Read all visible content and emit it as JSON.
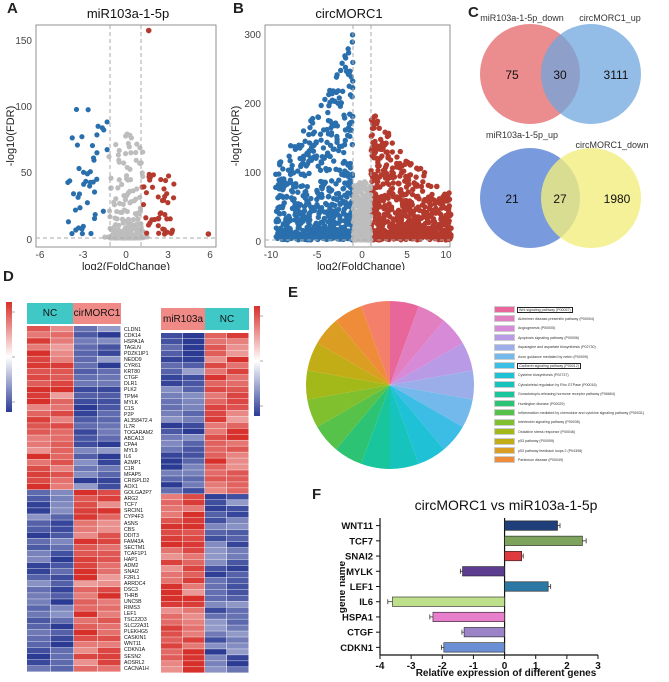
{
  "panels": {
    "A": {
      "label": "A",
      "title": "miR103a-1-5p",
      "xlabel": "log2(FoldChange)",
      "ylabel": "-log10(FDR)",
      "xticks": [
        "-6",
        "-3",
        "0",
        "3",
        "6"
      ],
      "yticks": [
        "0",
        "50",
        "100",
        "150"
      ]
    },
    "B": {
      "label": "B",
      "title": "circMORC1",
      "xlabel": "log2(FoldChange)",
      "ylabel": "-log10(FDR)",
      "xticks": [
        "-10",
        "-5",
        "0",
        "5",
        "10"
      ],
      "yticks": [
        "0",
        "100",
        "200",
        "300"
      ]
    },
    "C": {
      "label": "C",
      "venn1": {
        "left_title": "miR103a-1-5p_down",
        "right_title": "circMORC1_up",
        "left": "75",
        "mid": "30",
        "right": "3111"
      },
      "venn2": {
        "left_title": "miR103a-1-5p_up",
        "right_title": "circMORC1_down",
        "left": "21",
        "mid": "27",
        "right": "1980"
      }
    },
    "D": {
      "label": "D",
      "left_groups": [
        "NC",
        "cirMORC1"
      ],
      "right_groups": [
        "miR103a",
        "NC"
      ],
      "genes": [
        "CLDN1",
        "CDK14",
        "HSPA1A",
        "TAGLN",
        "PDZK1IP1",
        "NEDD9",
        "CYR61",
        "KRT80",
        "CTGF",
        "DLR1",
        "PLK2",
        "TPM4",
        "MYLK",
        "C1S",
        "P2P",
        "AL358472.4",
        "IL7R",
        "TOGARAM2",
        "ABCA13",
        "CPA4",
        "MYL9",
        "IL6",
        "A2MP1",
        "C1R",
        "MFAP5",
        "CRISPLD2",
        "AOX1",
        "GOLGA2P7",
        "ARG2",
        "TCF7",
        "SRCIN1",
        "CYP4F3",
        "ASNS",
        "CBS",
        "DDIT3",
        "FAM43A",
        "SECTM1",
        "TCAF1P1",
        "HAP1",
        "ADM2",
        "SNAI2",
        "F2RL1",
        "ARRDC4",
        "DSC3",
        "THRB",
        "UNC5B",
        "RIMS3",
        "LEF1",
        "TSC22D3",
        "SLC22A31",
        "PLEKHG5",
        "CASKIN1",
        "WNT11",
        "CDKN1A",
        "SESN2",
        "AOSRL2",
        "CACNA1H"
      ]
    },
    "E": {
      "label": "E",
      "pathways": [
        {
          "name": "Wnt signaling pathway (P00057)",
          "color": "#e8669a"
        },
        {
          "name": "Alzheimer disease-presenilin pathway (P00004)",
          "color": "#e27fc0"
        },
        {
          "name": "Angiogenesis (P00005)",
          "color": "#d68ad8"
        },
        {
          "name": "Apoptosis signaling pathway (P00006)",
          "color": "#b99ae6"
        },
        {
          "name": "Asparagine and aspartate biosynthesis (P02730)",
          "color": "#9caeea"
        },
        {
          "name": "Axon guidance mediated by netrin (P00009)",
          "color": "#73b9ec"
        },
        {
          "name": "Cadherin signaling pathway (P00012)",
          "color": "#3bbde6"
        },
        {
          "name": "Cysteine biosynthesis (P02737)",
          "color": "#1ec1d6"
        },
        {
          "name": "Cytoskeletal regulation by Rho GTPase (P00016)",
          "color": "#16c4bd"
        },
        {
          "name": "Gonadotropin-releasing hormone receptor pathway (P06664)",
          "color": "#19c59c"
        },
        {
          "name": "Huntington disease (P00029)",
          "color": "#2cc474"
        },
        {
          "name": "Inflammation mediated by chemokine and cytokine signaling pathway (P00031)",
          "color": "#56c24a"
        },
        {
          "name": "Interleukin signaling pathway (P00036)",
          "color": "#80bf2d"
        },
        {
          "name": "Oxidative stress response (P00046)",
          "color": "#a2b919"
        },
        {
          "name": "p53 pathway (P00059)",
          "color": "#c2ad17"
        },
        {
          "name": "p53 pathway feedback loops 2 (P04398)",
          "color": "#dc9e22"
        },
        {
          "name": "Parkinson disease (P00049)",
          "color": "#ef8c3a"
        }
      ],
      "extra_slice_color": "#f47f6b"
    },
    "F": {
      "label": "F"
    }
  },
  "chart_data": {
    "type": "bar",
    "title": "circMORC1 vs miR103a-1-5p",
    "xlabel": "Relative expression of different genes",
    "ylabel": "gene name",
    "xlim": [
      -4,
      3
    ],
    "xticks": [
      "-4",
      "-3",
      "-2",
      "-1",
      "0",
      "1",
      "2",
      "3"
    ],
    "categories": [
      "WNT11",
      "TCF7",
      "SNAI2",
      "MYLK",
      "LEF1",
      "IL6",
      "HSPA1",
      "CTGF",
      "CDKN1"
    ],
    "values": [
      1.7,
      2.5,
      0.55,
      -1.35,
      1.4,
      -3.6,
      -2.3,
      -1.3,
      -1.95
    ],
    "errors": [
      0.08,
      0.12,
      0.05,
      0.07,
      0.08,
      0.15,
      0.1,
      0.07,
      0.08
    ],
    "colors": [
      "#1f3f7a",
      "#7ea35c",
      "#df3a40",
      "#5c3d8f",
      "#2b78a4",
      "#bfe08a",
      "#e77fcd",
      "#9a83c6",
      "#6a8fd5"
    ]
  }
}
